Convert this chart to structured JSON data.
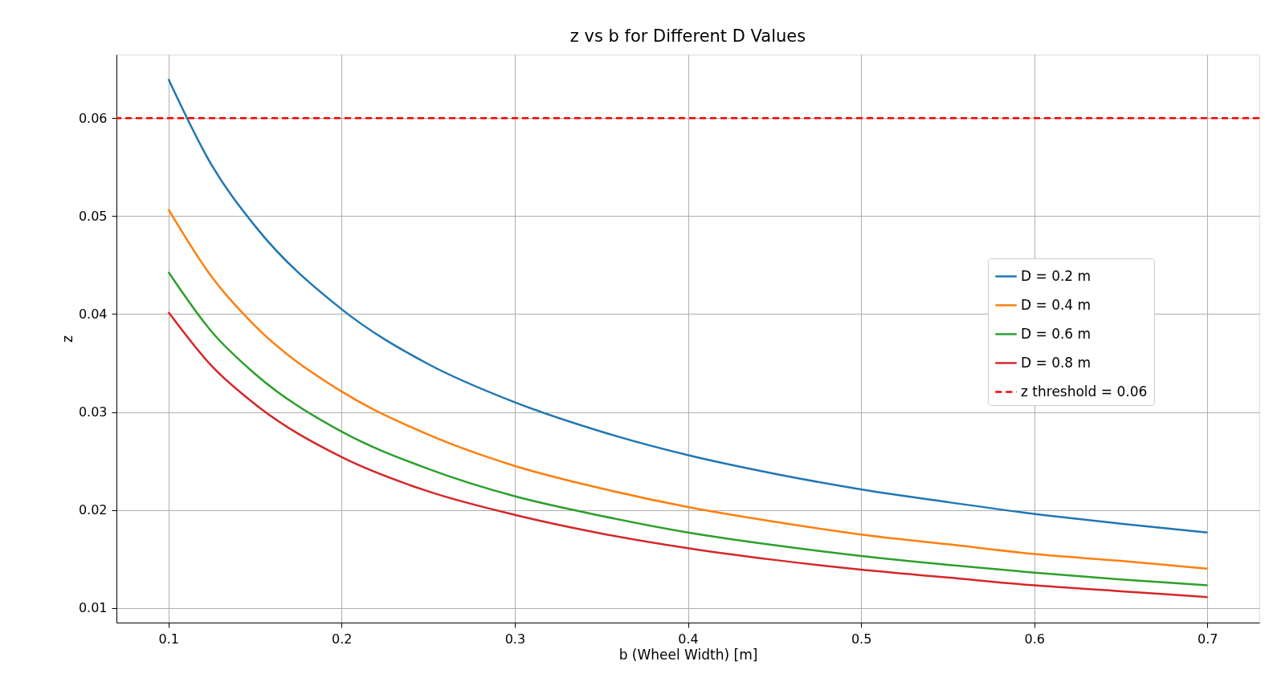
{
  "chart_data": {
    "type": "line",
    "title": "z vs b for Different D Values",
    "xlabel": "b (Wheel Width) [m]",
    "ylabel": "z",
    "x": [
      0.1,
      0.125,
      0.15,
      0.2,
      0.25,
      0.3,
      0.35,
      0.4,
      0.45,
      0.5,
      0.55,
      0.6,
      0.65,
      0.7
    ],
    "series": [
      {
        "name": "D = 0.2 m",
        "color": "#1f77b4",
        "values": [
          0.064,
          0.0552,
          0.049,
          0.0405,
          0.0349,
          0.031,
          0.028,
          0.0256,
          0.0237,
          0.0221,
          0.0208,
          0.0196,
          0.0186,
          0.0177
        ]
      },
      {
        "name": "D = 0.4 m",
        "color": "#ff7f0e",
        "values": [
          0.0507,
          0.0438,
          0.0388,
          0.0321,
          0.0277,
          0.0245,
          0.0222,
          0.0203,
          0.0188,
          0.0175,
          0.0165,
          0.0155,
          0.0148,
          0.014
        ]
      },
      {
        "name": "D = 0.6 m",
        "color": "#2ca02c",
        "values": [
          0.0443,
          0.0382,
          0.0339,
          0.028,
          0.0242,
          0.0214,
          0.0194,
          0.0177,
          0.0164,
          0.0153,
          0.0144,
          0.0136,
          0.0129,
          0.0123
        ]
      },
      {
        "name": "D = 0.8 m",
        "color": "#d62728",
        "values": [
          0.0402,
          0.0347,
          0.0308,
          0.0254,
          0.0219,
          0.0195,
          0.0176,
          0.0161,
          0.0149,
          0.0139,
          0.0131,
          0.0123,
          0.0117,
          0.0111
        ]
      }
    ],
    "ref_lines": [
      {
        "axis": "y",
        "value": 0.06,
        "label": "z threshold = 0.06",
        "color": "#ff0000",
        "line_style": "dashed"
      }
    ],
    "xlim": [
      0.07,
      0.73
    ],
    "xticks": [
      0.1,
      0.2,
      0.3,
      0.4,
      0.5,
      0.6,
      0.7
    ],
    "ylim": [
      0.0085,
      0.0665
    ],
    "yticks": [
      0.01,
      0.02,
      0.03,
      0.04,
      0.05,
      0.06
    ],
    "grid": true,
    "legend": "right",
    "line_style": "solid"
  }
}
